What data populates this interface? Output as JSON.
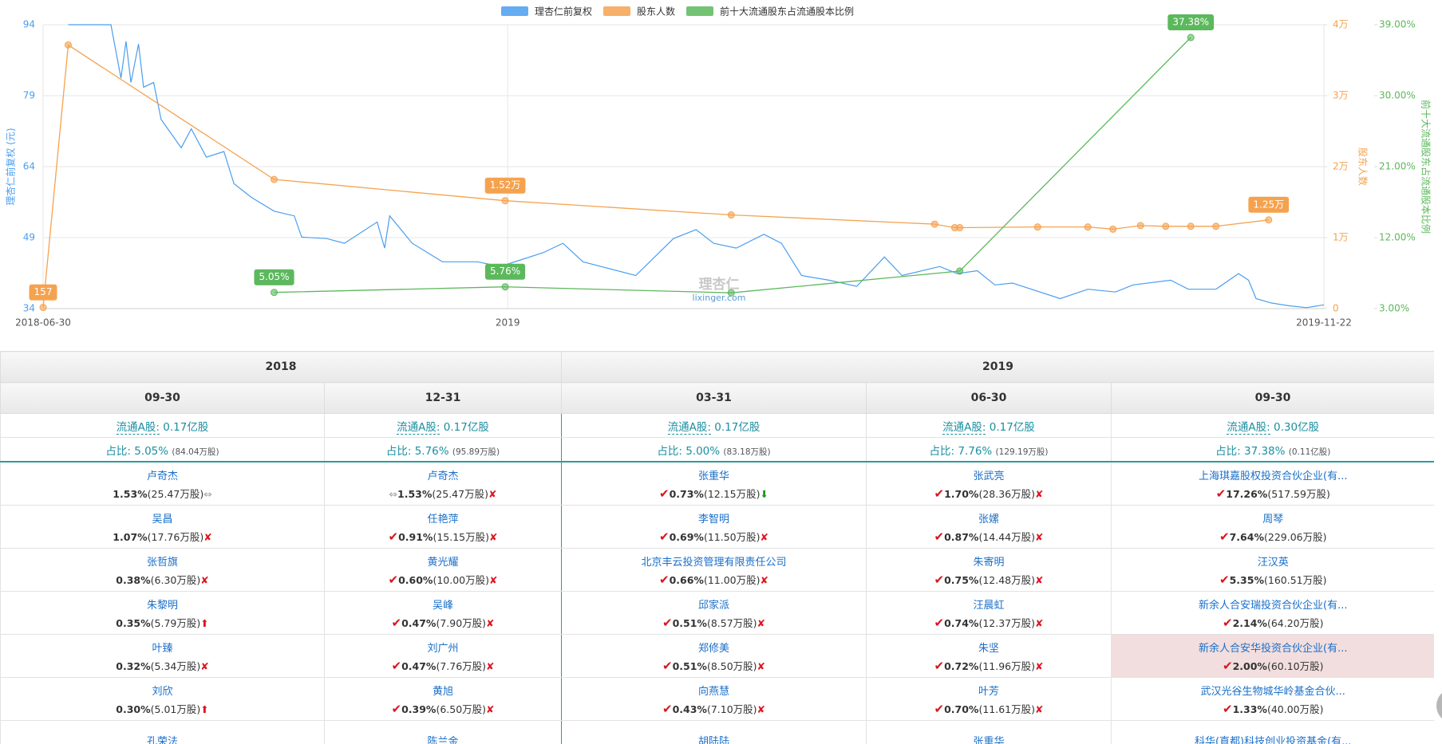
{
  "chart_data": {
    "type": "line",
    "ylabel": "理杏仁前复权 (元)",
    "y2label": "股东人数",
    "y3label": "前十大流通股东占流通股本比例",
    "watermark": "理杏仁",
    "watermark_sub": "lixinger.com",
    "xlim": [
      "2018-06-30",
      "2019-11-22"
    ],
    "xticks": [
      "2018-06-30",
      {
        "value": "2019-01-01",
        "label": "2019"
      },
      "2019-11-22"
    ],
    "ylim": [
      34,
      94
    ],
    "yticks": [
      34,
      49,
      64,
      79,
      94
    ],
    "y2lim": [
      0,
      40000
    ],
    "y2ticks": [
      0,
      {
        "value": 10000,
        "label": "1万"
      },
      {
        "value": 20000,
        "label": "2万"
      },
      {
        "value": 30000,
        "label": "3万"
      },
      {
        "value": 40000,
        "label": "4万"
      }
    ],
    "y3lim": [
      3,
      39
    ],
    "y3ticks": [
      {
        "value": 3,
        "label": "3.00%"
      },
      {
        "value": 12,
        "label": "12.00%"
      },
      {
        "value": 21,
        "label": "21.00%"
      },
      {
        "value": 30,
        "label": "30.00%"
      },
      {
        "value": 39,
        "label": "39.00%"
      }
    ],
    "grid": true,
    "series": [
      {
        "name": "理杏仁前复权",
        "color": "#4a9ef0",
        "axis": "y",
        "markers": false,
        "x": [
          "2018-07-10",
          "2018-07-27",
          "2018-07-31",
          "2018-08-02",
          "2018-08-04",
          "2018-08-07",
          "2018-08-09",
          "2018-08-13",
          "2018-08-16",
          "2018-08-24",
          "2018-08-28",
          "2018-09-03",
          "2018-09-10",
          "2018-09-14",
          "2018-09-21",
          "2018-09-30",
          "2018-10-08",
          "2018-10-11",
          "2018-10-21",
          "2018-10-28",
          "2018-11-10",
          "2018-11-13",
          "2018-11-15",
          "2018-11-24",
          "2018-12-06",
          "2018-12-20",
          "2018-12-29",
          "2019-01-15",
          "2019-01-23",
          "2019-01-31",
          "2019-02-21",
          "2019-03-08",
          "2019-03-17",
          "2019-03-24",
          "2019-04-02",
          "2019-04-13",
          "2019-04-20",
          "2019-04-28",
          "2019-05-09",
          "2019-05-20",
          "2019-05-31",
          "2019-06-07",
          "2019-06-22",
          "2019-06-29",
          "2019-07-07",
          "2019-07-14",
          "2019-07-21",
          "2019-08-09",
          "2019-08-20",
          "2019-08-31",
          "2019-09-07",
          "2019-09-22",
          "2019-09-29",
          "2019-10-10",
          "2019-10-19",
          "2019-10-23",
          "2019-10-26",
          "2019-11-01",
          "2019-11-08",
          "2019-11-15",
          "2019-11-22"
        ],
        "values": [
          94,
          94,
          82.7,
          90.5,
          81.8,
          89.9,
          80.8,
          81.8,
          74,
          68,
          72,
          66,
          67.2,
          60.4,
          57.5,
          54.6,
          53.6,
          49.1,
          48.8,
          47.8,
          52.3,
          46.8,
          53.6,
          47.8,
          43.9,
          43.9,
          42.9,
          45.8,
          47.8,
          43.9,
          41,
          48.8,
          50.7,
          47.8,
          46.8,
          49.7,
          47.8,
          41,
          40,
          38.7,
          44.9,
          41,
          42.9,
          41.4,
          42,
          39,
          39.4,
          36.1,
          38.1,
          37.5,
          39,
          40,
          38.1,
          38.1,
          41.4,
          40,
          36.1,
          35.2,
          34.6,
          34.2,
          34.8
        ]
      },
      {
        "name": "股东人数",
        "color": "#f5a24f",
        "axis": "y2",
        "markers": true,
        "x": [
          "2018-06-30",
          "2018-07-10",
          "2018-09-30",
          "2018-12-31",
          "2019-03-31",
          "2019-06-20",
          "2019-06-28",
          "2019-06-30",
          "2019-07-31",
          "2019-08-20",
          "2019-08-30",
          "2019-09-10",
          "2019-09-20",
          "2019-09-30",
          "2019-10-10",
          "2019-10-31"
        ],
        "values": [
          157,
          37150,
          18200,
          15200,
          13200,
          11900,
          11400,
          11400,
          11500,
          11500,
          11200,
          11700,
          11600,
          11600,
          11600,
          12500
        ],
        "value_labels": [
          "157",
          null,
          null,
          "1.52万",
          null,
          null,
          null,
          null,
          null,
          null,
          null,
          null,
          null,
          null,
          null,
          "1.25万"
        ]
      },
      {
        "name": "前十大流通股东占流通股本比例",
        "color": "#5cb85c",
        "axis": "y3",
        "markers": true,
        "x": [
          "2018-09-30",
          "2018-12-31",
          "2019-03-31",
          "2019-06-30",
          "2019-09-30"
        ],
        "values": [
          5.05,
          5.76,
          5.0,
          7.76,
          37.38
        ],
        "value_labels": [
          "5.05%",
          "5.76%",
          null,
          null,
          "37.38%"
        ]
      }
    ]
  },
  "table": {
    "years": [
      "2018",
      "2019"
    ],
    "float_label": "流通A股:",
    "ratio_label": "占比:",
    "columns": [
      {
        "date": "09-30",
        "float": "0.17亿股",
        "ratio": "5.05%",
        "ratio_shares": "(84.04万股)",
        "holders": [
          {
            "name": "卢奇杰",
            "pct": "1.53%",
            "shares": "(25.47万股)",
            "post": "same"
          },
          {
            "name": "吴昌",
            "pct": "1.07%",
            "shares": "(17.76万股)",
            "post": "cross"
          },
          {
            "name": "张哲旗",
            "pct": "0.38%",
            "shares": "(6.30万股)",
            "post": "cross"
          },
          {
            "name": "朱黎明",
            "pct": "0.35%",
            "shares": "(5.79万股)",
            "post": "up"
          },
          {
            "name": "叶臻",
            "pct": "0.32%",
            "shares": "(5.34万股)",
            "post": "cross"
          },
          {
            "name": "刘欣",
            "pct": "0.30%",
            "shares": "(5.01万股)",
            "post": "up"
          },
          {
            "name": "孔荣法"
          }
        ]
      },
      {
        "date": "12-31",
        "float": "0.17亿股",
        "ratio": "5.76%",
        "ratio_shares": "(95.89万股)",
        "holders": [
          {
            "name": "卢奇杰",
            "pre": "same",
            "pct": "1.53%",
            "shares": "(25.47万股)",
            "post": "cross"
          },
          {
            "name": "任艳萍",
            "pre": "check",
            "pct": "0.91%",
            "shares": "(15.15万股)",
            "post": "cross"
          },
          {
            "name": "黄光耀",
            "pre": "check",
            "pct": "0.60%",
            "shares": "(10.00万股)",
            "post": "cross"
          },
          {
            "name": "吴峰",
            "pre": "check",
            "pct": "0.47%",
            "shares": "(7.90万股)",
            "post": "cross"
          },
          {
            "name": "刘广州",
            "pre": "check",
            "pct": "0.47%",
            "shares": "(7.76万股)",
            "post": "cross"
          },
          {
            "name": "黄旭",
            "pre": "check",
            "pct": "0.39%",
            "shares": "(6.50万股)",
            "post": "cross"
          },
          {
            "name": "陈兰金"
          }
        ]
      },
      {
        "date": "03-31",
        "float": "0.17亿股",
        "ratio": "5.00%",
        "ratio_shares": "(83.18万股)",
        "holders": [
          {
            "name": "张重华",
            "pre": "check",
            "pct": "0.73%",
            "shares": "(12.15万股)",
            "post": "down"
          },
          {
            "name": "李智明",
            "pre": "check",
            "pct": "0.69%",
            "shares": "(11.50万股)",
            "post": "cross"
          },
          {
            "name": "北京丰云投资管理有限责任公司",
            "pre": "check",
            "pct": "0.66%",
            "shares": "(11.00万股)",
            "post": "cross"
          },
          {
            "name": "邱家派",
            "pre": "check",
            "pct": "0.51%",
            "shares": "(8.57万股)",
            "post": "cross"
          },
          {
            "name": "郑修美",
            "pre": "check",
            "pct": "0.51%",
            "shares": "(8.50万股)",
            "post": "cross"
          },
          {
            "name": "向燕慧",
            "pre": "check",
            "pct": "0.43%",
            "shares": "(7.10万股)",
            "post": "cross"
          },
          {
            "name": "胡陆陆"
          }
        ]
      },
      {
        "date": "06-30",
        "float": "0.17亿股",
        "ratio": "7.76%",
        "ratio_shares": "(129.19万股)",
        "holders": [
          {
            "name": "张武亮",
            "pre": "check",
            "pct": "1.70%",
            "shares": "(28.36万股)",
            "post": "cross"
          },
          {
            "name": "张嫘",
            "pre": "check",
            "pct": "0.87%",
            "shares": "(14.44万股)",
            "post": "cross"
          },
          {
            "name": "朱寄明",
            "pre": "check",
            "pct": "0.75%",
            "shares": "(12.48万股)",
            "post": "cross"
          },
          {
            "name": "汪晨虹",
            "pre": "check",
            "pct": "0.74%",
            "shares": "(12.37万股)",
            "post": "cross"
          },
          {
            "name": "朱坚",
            "pre": "check",
            "pct": "0.72%",
            "shares": "(11.96万股)",
            "post": "cross"
          },
          {
            "name": "叶芳",
            "pre": "check",
            "pct": "0.70%",
            "shares": "(11.61万股)",
            "post": "cross"
          },
          {
            "name": "张重华"
          }
        ]
      },
      {
        "date": "09-30",
        "float": "0.30亿股",
        "ratio": "37.38%",
        "ratio_shares": "(0.11亿股)",
        "holders": [
          {
            "name": "上海琪嘉股权投资合伙企业(有...",
            "pre": "check",
            "pct": "17.26%",
            "shares": "(517.59万股)"
          },
          {
            "name": "周琴",
            "pre": "check",
            "pct": "7.64%",
            "shares": "(229.06万股)"
          },
          {
            "name": "汪汉英",
            "pre": "check",
            "pct": "5.35%",
            "shares": "(160.51万股)"
          },
          {
            "name": "新余人合安瑞投资合伙企业(有...",
            "pre": "check",
            "pct": "2.14%",
            "shares": "(64.20万股)"
          },
          {
            "name": "新余人合安华投资合伙企业(有...",
            "pre": "check",
            "pct": "2.00%",
            "shares": "(60.10万股)",
            "highlight": true
          },
          {
            "name": "武汉光谷生物城华岭基金合伙...",
            "pre": "check",
            "pct": "1.33%",
            "shares": "(40.00万股)"
          },
          {
            "name": "科华(直都)科技创业投资基金(有..."
          }
        ]
      }
    ]
  }
}
